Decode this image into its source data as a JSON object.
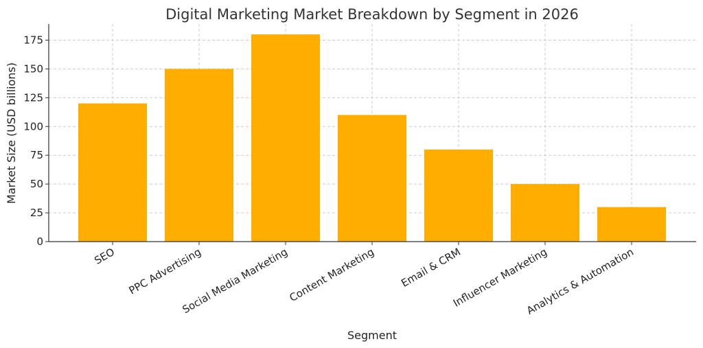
{
  "chart_data": {
    "type": "bar",
    "title": "Digital Marketing Market Breakdown by Segment in 2026",
    "xlabel": "Segment",
    "ylabel": "Market Size (USD billions)",
    "categories": [
      "SEO",
      "PPC Advertising",
      "Social Media Marketing",
      "Content Marketing",
      "Email & CRM",
      "Influencer Marketing",
      "Analytics & Automation"
    ],
    "values": [
      120,
      150,
      180,
      110,
      80,
      50,
      30
    ],
    "yticks": [
      0,
      25,
      50,
      75,
      100,
      125,
      150,
      175
    ],
    "ylim": [
      0,
      189
    ],
    "grid": true,
    "bar_color": "#FFAE00"
  }
}
